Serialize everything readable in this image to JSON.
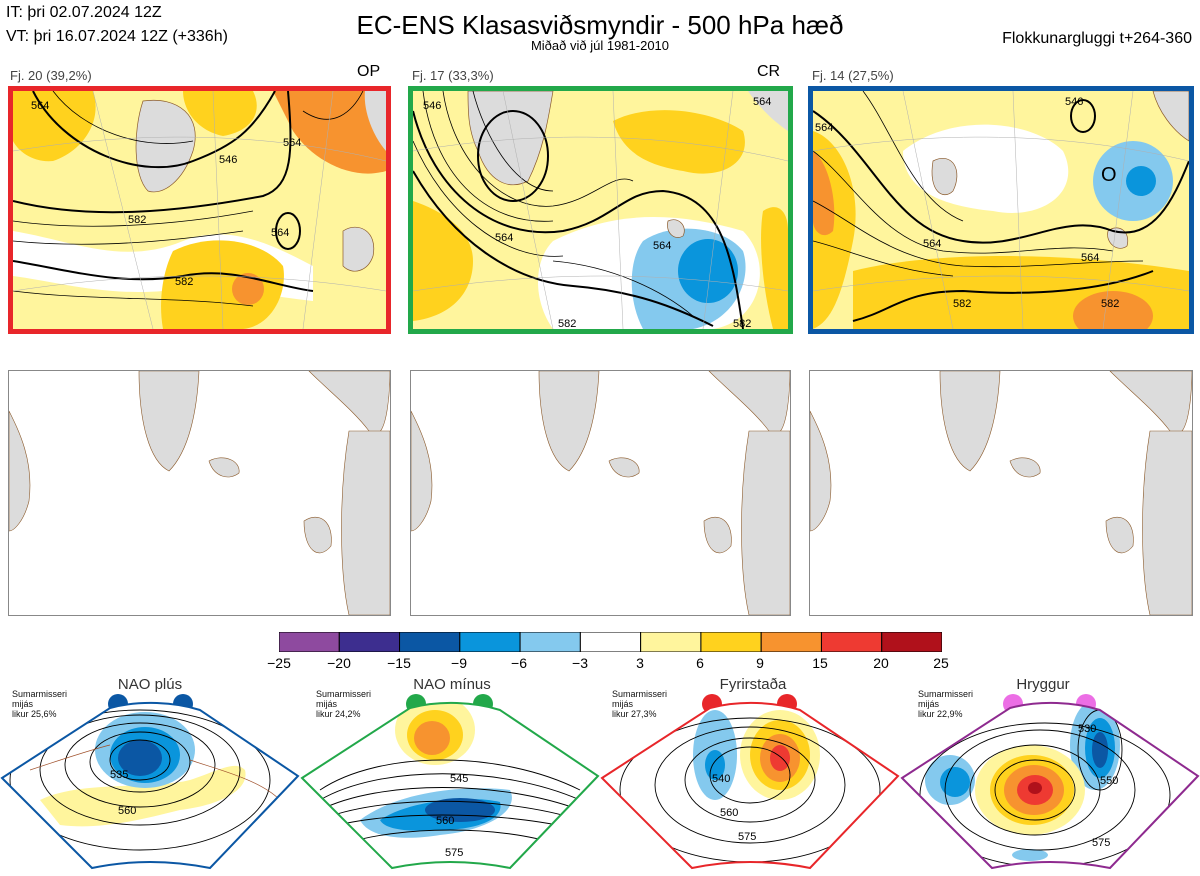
{
  "header": {
    "issue_time": "IT: þri 02.07.2024 12Z",
    "valid_time": "VT: þri 16.07.2024 12Z  (+336h)",
    "title": "EC-ENS Klasasviðsmyndir - 500 hPa hæð",
    "subtitle": "Miðað við júl 1981-2010",
    "window": "Flokkunargluggi t+264-360"
  },
  "panels": [
    {
      "label": "Fj. 20 (39,2%)",
      "tag": "OP",
      "border_color": "#e8262a",
      "contours": [
        "564",
        "546",
        "564",
        "564",
        "582",
        "582"
      ]
    },
    {
      "label": "Fj. 17 (33,3%)",
      "tag": "CR",
      "border_color": "#22a84a",
      "contours": [
        "546",
        "564",
        "564",
        "564",
        "582",
        "582"
      ]
    },
    {
      "label": "Fj. 14 (27,5%)",
      "tag": "",
      "border_color": "#0b57a4",
      "contours": [
        "546",
        "564",
        "564",
        "564",
        "582",
        "582"
      ]
    }
  ],
  "colorbar": {
    "labels": [
      "−25",
      "−20",
      "−15",
      "−9",
      "−6",
      "−3",
      "3",
      "6",
      "9",
      "15",
      "20",
      "25"
    ],
    "colors": [
      "#8e4a9f",
      "#3d2e8f",
      "#0b57a4",
      "#0a95dc",
      "#84c9ee",
      "#ffffff",
      "#fff59d",
      "#ffd21e",
      "#f7932f",
      "#ee3a32",
      "#b0111b"
    ]
  },
  "regimes": [
    {
      "name": "NAO plús",
      "note": [
        "Sumarmisseri",
        "mijás",
        "likur 25,6%"
      ],
      "color": "#0b57a4",
      "contours": [
        "535",
        "560"
      ]
    },
    {
      "name": "NAO mínus",
      "note": [
        "Sumarmisseri",
        "mijás",
        "likur 24,2%"
      ],
      "color": "#22a84a",
      "contours": [
        "545",
        "560",
        "575"
      ]
    },
    {
      "name": "Fyrirstaða",
      "note": [
        "Sumarmisseri",
        "mijás",
        "likur 27,3%"
      ],
      "color": "#e8262a",
      "contours": [
        "540",
        "560",
        "575"
      ]
    },
    {
      "name": "Hryggur",
      "note": [
        "Sumarmisseri",
        "mijás",
        "likur 22,9%"
      ],
      "color": "#ec6ee5",
      "contours": [
        "530",
        "550",
        "575"
      ]
    }
  ],
  "low_marker": "O"
}
